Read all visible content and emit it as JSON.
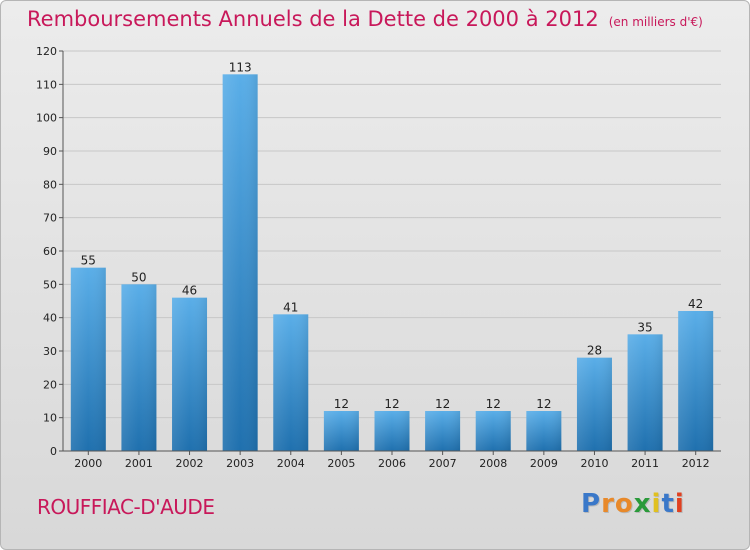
{
  "chart_data": {
    "type": "bar",
    "title": "Remboursements Annuels de la Dette de 2000 à 2012",
    "subtitle": "(en milliers d'€)",
    "categories": [
      "2000",
      "2001",
      "2002",
      "2003",
      "2004",
      "2005",
      "2006",
      "2007",
      "2008",
      "2009",
      "2010",
      "2011",
      "2012"
    ],
    "values": [
      55,
      50,
      46,
      113,
      41,
      12,
      12,
      12,
      12,
      12,
      28,
      35,
      42
    ],
    "ylim": [
      0,
      120
    ],
    "yticks": [
      0,
      10,
      20,
      30,
      40,
      50,
      60,
      70,
      80,
      90,
      100,
      110,
      120
    ],
    "grid": true,
    "colors": {
      "bar_top": "#5aaee8",
      "bar_bottom": "#1f70ae",
      "title": "#c8185a"
    }
  },
  "commune": "ROUFFIAC-D'AUDE",
  "logo": {
    "letters": [
      "P",
      "r",
      "o",
      "x",
      "i",
      "t",
      "i"
    ],
    "colors": [
      "#3a78c9",
      "#e8892a",
      "#e8892a",
      "#2a9a3a",
      "#e0c020",
      "#3a78c9",
      "#e04020"
    ]
  }
}
